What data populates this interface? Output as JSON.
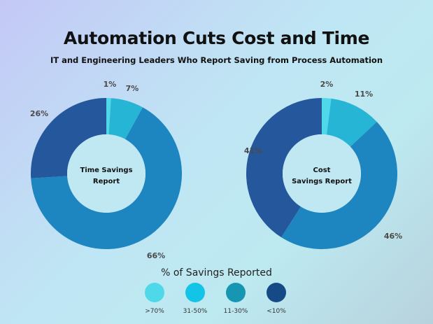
{
  "title": "Automation Cuts Cost and Time",
  "subtitle": "IT and Engineering Leaders Who Report Saving from Process Automation",
  "legend_title": "% of Savings Reported",
  "chart_data": [
    {
      "type": "pie",
      "center_label": [
        "Time Savings",
        "Report"
      ],
      "categories": [
        ">70%",
        "31-50%",
        "11-30%",
        "<10%"
      ],
      "values": [
        1,
        7,
        66,
        26
      ],
      "value_labels": [
        "1%",
        "7%",
        "66%",
        "26%"
      ],
      "colors": [
        "#4fd8ea",
        "#27b5d6",
        "#1d86c0",
        "#24579c"
      ]
    },
    {
      "type": "pie",
      "center_label": [
        "Cost",
        "Savings Report"
      ],
      "categories": [
        ">70%",
        "31-50%",
        "11-30%",
        "<10%"
      ],
      "values": [
        2,
        11,
        46,
        41
      ],
      "value_labels": [
        "2%",
        "11%",
        "46%",
        "41%"
      ],
      "colors": [
        "#4fd8ea",
        "#27b5d6",
        "#1d86c0",
        "#24579c"
      ]
    }
  ],
  "legend": [
    {
      "label": ">70%",
      "color": "#4fd8ea"
    },
    {
      "label": "31-50%",
      "color": "#14c4e6"
    },
    {
      "label": "11-30%",
      "color": "#1696b3"
    },
    {
      "label": "<10%",
      "color": "#164a86"
    }
  ]
}
